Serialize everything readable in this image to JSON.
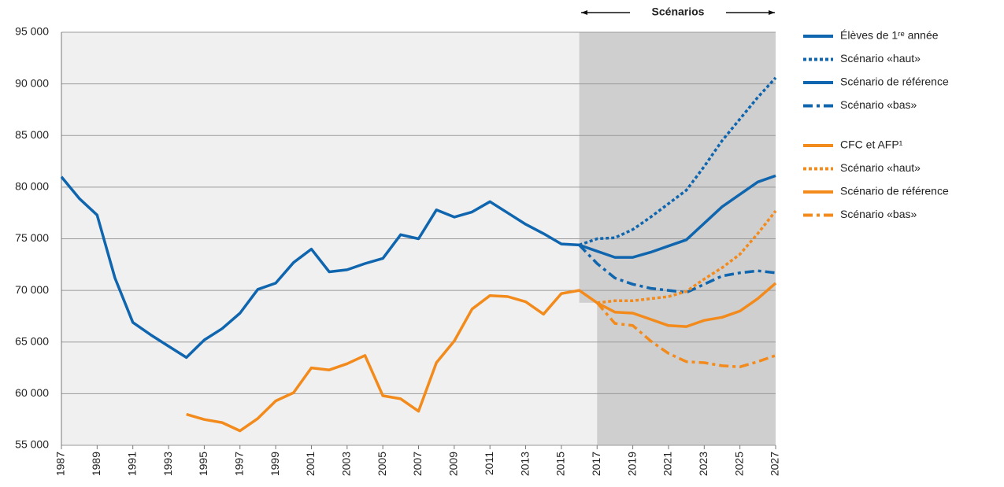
{
  "chart_data": {
    "type": "line",
    "annotation": "Scénarios",
    "x": [
      1987,
      1988,
      1989,
      1990,
      1991,
      1992,
      1993,
      1994,
      1995,
      1996,
      1997,
      1998,
      1999,
      2000,
      2001,
      2002,
      2003,
      2004,
      2005,
      2006,
      2007,
      2008,
      2009,
      2010,
      2011,
      2012,
      2013,
      2014,
      2015,
      2016,
      2017,
      2018,
      2019,
      2020,
      2021,
      2022,
      2023,
      2024,
      2025,
      2026,
      2027
    ],
    "xlim": [
      1987,
      2027
    ],
    "xticks": [
      1987,
      1989,
      1991,
      1993,
      1995,
      1997,
      1999,
      2001,
      2003,
      2005,
      2007,
      2009,
      2011,
      2013,
      2015,
      2017,
      2019,
      2021,
      2023,
      2025,
      2027
    ],
    "ylim": [
      55000,
      95000
    ],
    "yticks": [
      {
        "value": 55000,
        "label": "55 000"
      },
      {
        "value": 60000,
        "label": "60 000"
      },
      {
        "value": 65000,
        "label": "65 000"
      },
      {
        "value": 70000,
        "label": "70 000"
      },
      {
        "value": 75000,
        "label": "75 000"
      },
      {
        "value": 80000,
        "label": "80 000"
      },
      {
        "value": 85000,
        "label": "85 000"
      },
      {
        "value": 90000,
        "label": "90 000"
      },
      {
        "value": 95000,
        "label": "95 000"
      }
    ],
    "grid": true,
    "series": [
      {
        "name": "Élèves de 1ʳᵉ année",
        "color": "#0f65ae",
        "style": "solid",
        "values": [
          81000,
          78900,
          77300,
          71200,
          66900,
          65700,
          64600,
          63500,
          65200,
          66300,
          67800,
          70100,
          70700,
          72700,
          74000,
          71800,
          72000,
          72600,
          73100,
          75400,
          75000,
          77800,
          77100,
          77600,
          78600,
          77500,
          76400,
          75500,
          74500,
          74400,
          null,
          null,
          null,
          null,
          null,
          null,
          null,
          null,
          null,
          null,
          null
        ]
      },
      {
        "name": "Scénario «haut»",
        "color": "#0f65ae",
        "style": "dotted",
        "values": [
          null,
          null,
          null,
          null,
          null,
          null,
          null,
          null,
          null,
          null,
          null,
          null,
          null,
          null,
          null,
          null,
          null,
          null,
          null,
          null,
          null,
          null,
          null,
          null,
          null,
          null,
          null,
          null,
          null,
          74400,
          75000,
          75100,
          75900,
          77100,
          78400,
          79700,
          82000,
          84500,
          86600,
          88700,
          90600
        ]
      },
      {
        "name": "Scénario de référence",
        "color": "#0f65ae",
        "style": "solid",
        "values": [
          null,
          null,
          null,
          null,
          null,
          null,
          null,
          null,
          null,
          null,
          null,
          null,
          null,
          null,
          null,
          null,
          null,
          null,
          null,
          null,
          null,
          null,
          null,
          null,
          null,
          null,
          null,
          null,
          null,
          74400,
          73800,
          73200,
          73200,
          73700,
          74300,
          74900,
          76500,
          78100,
          79300,
          80500,
          81100
        ]
      },
      {
        "name": "Scénario «bas»",
        "color": "#0f65ae",
        "style": "dashdot",
        "values": [
          null,
          null,
          null,
          null,
          null,
          null,
          null,
          null,
          null,
          null,
          null,
          null,
          null,
          null,
          null,
          null,
          null,
          null,
          null,
          null,
          null,
          null,
          null,
          null,
          null,
          null,
          null,
          null,
          null,
          74400,
          72600,
          71200,
          70600,
          70200,
          70000,
          69800,
          70600,
          71400,
          71700,
          71900,
          71700
        ]
      },
      {
        "name": "CFC et AFP¹",
        "color": "#f28a1c",
        "style": "solid",
        "values": [
          null,
          null,
          null,
          null,
          null,
          null,
          null,
          58000,
          57500,
          57200,
          56400,
          57600,
          59300,
          60100,
          62500,
          62300,
          62900,
          63700,
          59800,
          59500,
          58300,
          63000,
          65100,
          68200,
          69500,
          69400,
          68900,
          67700,
          69700,
          70000,
          68800,
          null,
          null,
          null,
          null,
          null,
          null,
          null,
          null,
          null,
          null
        ]
      },
      {
        "name": "Scénario «haut»",
        "color": "#f28a1c",
        "style": "dotted",
        "values": [
          null,
          null,
          null,
          null,
          null,
          null,
          null,
          null,
          null,
          null,
          null,
          null,
          null,
          null,
          null,
          null,
          null,
          null,
          null,
          null,
          null,
          null,
          null,
          null,
          null,
          null,
          null,
          null,
          null,
          null,
          68800,
          69000,
          69000,
          69200,
          69400,
          69900,
          71100,
          72200,
          73500,
          75500,
          77700
        ]
      },
      {
        "name": "Scénario de référence",
        "color": "#f28a1c",
        "style": "solid",
        "values": [
          null,
          null,
          null,
          null,
          null,
          null,
          null,
          null,
          null,
          null,
          null,
          null,
          null,
          null,
          null,
          null,
          null,
          null,
          null,
          null,
          null,
          null,
          null,
          null,
          null,
          null,
          null,
          null,
          null,
          null,
          68800,
          67900,
          67800,
          67200,
          66600,
          66500,
          67100,
          67400,
          68000,
          69200,
          70700
        ]
      },
      {
        "name": "Scénario «bas»",
        "color": "#f28a1c",
        "style": "dashdot",
        "values": [
          null,
          null,
          null,
          null,
          null,
          null,
          null,
          null,
          null,
          null,
          null,
          null,
          null,
          null,
          null,
          null,
          null,
          null,
          null,
          null,
          null,
          null,
          null,
          null,
          null,
          null,
          null,
          null,
          null,
          null,
          68800,
          66800,
          66600,
          65100,
          63900,
          63100,
          63000,
          62700,
          62600,
          63100,
          63700
        ]
      }
    ]
  }
}
